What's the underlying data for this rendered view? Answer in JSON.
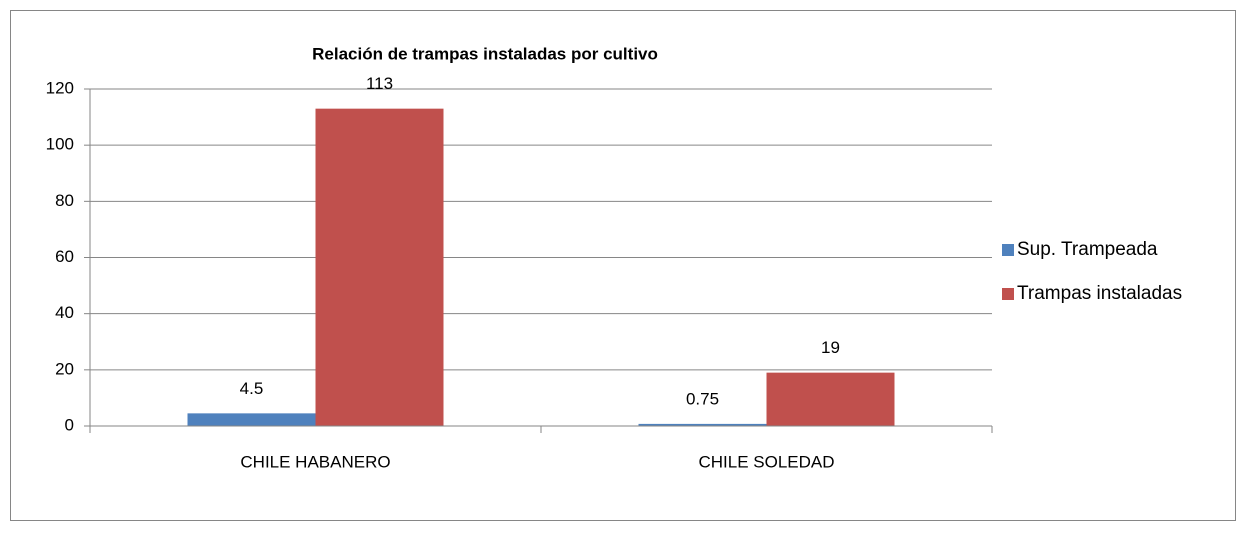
{
  "chart_data": {
    "type": "bar",
    "title": "Relación de trampas instaladas por cultivo",
    "categories": [
      "CHILE HABANERO",
      "CHILE SOLEDAD"
    ],
    "series": [
      {
        "name": "Sup. Trampeada",
        "color": "#4f81bd",
        "values": [
          4.5,
          0.75
        ]
      },
      {
        "name": "Trampas instaladas",
        "color": "#c0504d",
        "values": [
          113,
          19
        ]
      }
    ],
    "ylim": [
      0,
      120
    ],
    "yticks": [
      0,
      20,
      40,
      60,
      80,
      100,
      120
    ],
    "grid": true,
    "legend": "right"
  }
}
